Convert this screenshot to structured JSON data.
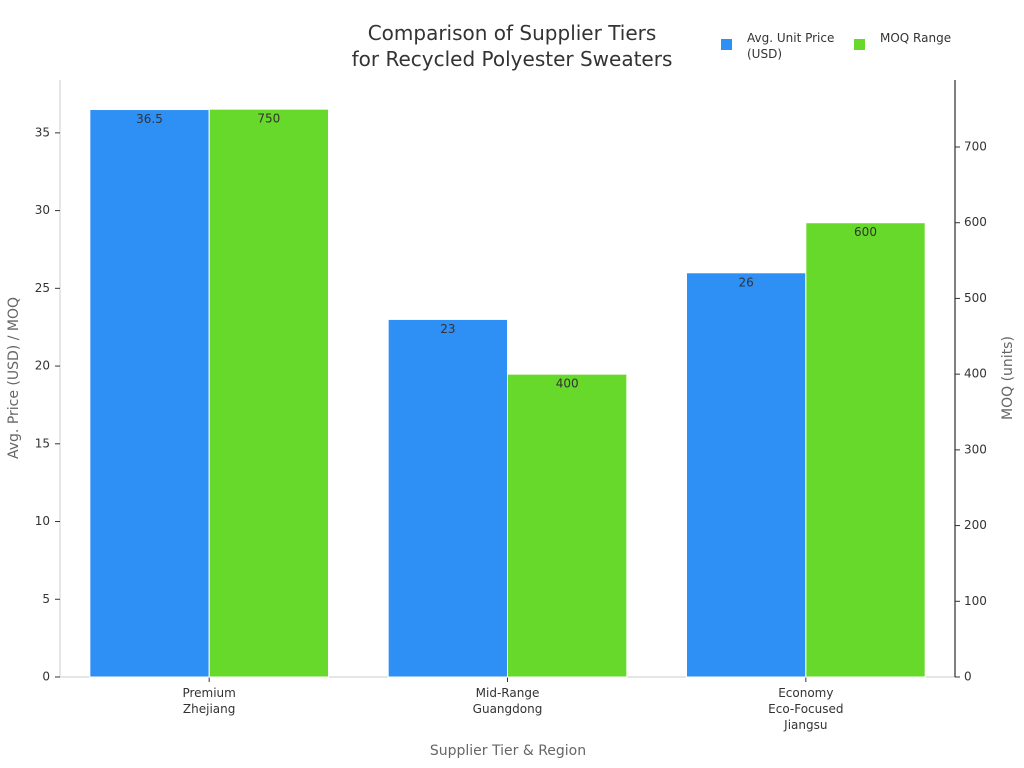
{
  "chart_data": {
    "type": "bar",
    "title": "Comparison of Supplier Tiers\nfor Recycled Polyester Sweaters",
    "x_label": "Supplier Tier & Region",
    "y_label": "Avg. Price (USD) / MOQ",
    "y2_label": "MOQ (units)",
    "categories": [
      "Premium\nZhejiang",
      "Mid-Range\nGuangdong",
      "Economy\nEco-Focused\nJiangsu"
    ],
    "series": [
      {
        "name": "Avg. Unit Price\n(USD)",
        "color": "#2e8ff5",
        "values": [
          36.5,
          23,
          26
        ]
      },
      {
        "name": "MOQ Range",
        "color": "#66d92b",
        "axis": "y2",
        "values": [
          750,
          400,
          600
        ]
      }
    ],
    "ylim": [
      0,
      38.4
    ],
    "yticks": [
      0,
      5,
      10,
      15,
      20,
      25,
      30,
      35
    ],
    "y2lim": [
      0,
      788.5
    ],
    "y2ticks": [
      0,
      100,
      200,
      300,
      400,
      500,
      600,
      700
    ]
  }
}
